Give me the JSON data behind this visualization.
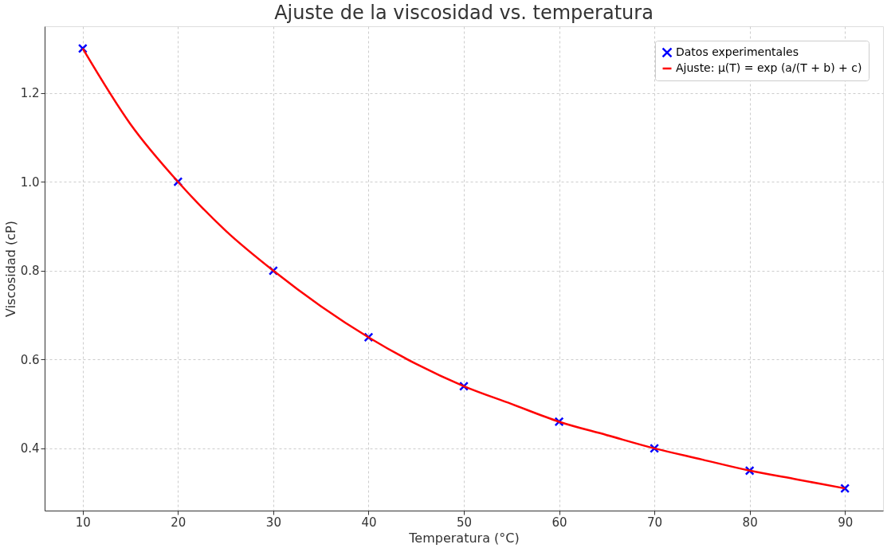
{
  "chart_data": {
    "type": "scatter",
    "title": "Ajuste de la viscosidad vs. temperatura",
    "xlabel": "Temperatura (°C)",
    "ylabel": "Viscosidad (cP)",
    "xlim": [
      6,
      94
    ],
    "ylim": [
      0.26,
      1.35
    ],
    "xticks": [
      10,
      20,
      30,
      40,
      50,
      60,
      70,
      80,
      90
    ],
    "yticks": [
      0.4,
      0.6,
      0.8,
      {
        "value": 1.0,
        "label": "1.0"
      },
      1.2
    ],
    "grid": true,
    "legend": "top right",
    "series": [
      {
        "name": "Datos experimentales",
        "marker": "cross",
        "color": "#0000ff",
        "x": [
          10,
          20,
          30,
          40,
          50,
          60,
          70,
          80,
          90
        ],
        "values": [
          1.3,
          1.0,
          0.8,
          0.65,
          0.54,
          0.46,
          0.4,
          0.35,
          0.31
        ]
      },
      {
        "name": "Ajuste: μ(T) = exp (a/(T + b) + c)",
        "type": "line",
        "line_style": "solid",
        "marker": "none",
        "color": "#ff0000",
        "x": [
          10,
          15,
          20,
          25,
          30,
          35,
          40,
          45,
          50,
          55,
          60,
          65,
          70,
          75,
          80,
          85,
          90
        ],
        "values": [
          1.3,
          1.13,
          1.0,
          0.89,
          0.8,
          0.72,
          0.65,
          0.59,
          0.54,
          0.5,
          0.46,
          0.43,
          0.4,
          0.375,
          0.35,
          0.33,
          0.31
        ]
      }
    ]
  }
}
